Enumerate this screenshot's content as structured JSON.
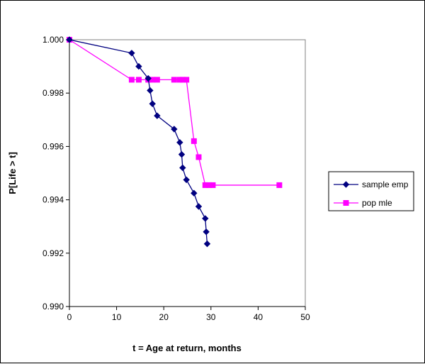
{
  "chart_data": {
    "type": "line",
    "title": "",
    "xlabel": "t = Age at return, months",
    "ylabel": "P[Life > t]",
    "xlim": [
      0,
      50
    ],
    "ylim": [
      0.99,
      1.0
    ],
    "xticks": [
      "0",
      "10",
      "20",
      "30",
      "40",
      "50"
    ],
    "yticks": [
      "0.990",
      "0.992",
      "0.994",
      "0.996",
      "0.998",
      "1.000"
    ],
    "grid": false,
    "legend_position": "right",
    "series": [
      {
        "name": "sample emp",
        "color": "#000080",
        "marker": "diamond",
        "points": [
          [
            0,
            1.0
          ],
          [
            13.2,
            0.9995
          ],
          [
            14.7,
            0.999
          ],
          [
            16.7,
            0.99855
          ],
          [
            17.1,
            0.9981
          ],
          [
            17.6,
            0.9976
          ],
          [
            18.6,
            0.99715
          ],
          [
            22.2,
            0.99665
          ],
          [
            23.4,
            0.99615
          ],
          [
            23.8,
            0.9957
          ],
          [
            24.0,
            0.9952
          ],
          [
            24.8,
            0.99475
          ],
          [
            26.4,
            0.99425
          ],
          [
            27.4,
            0.99375
          ],
          [
            28.8,
            0.9933
          ],
          [
            29.0,
            0.9928
          ],
          [
            29.2,
            0.99235
          ]
        ]
      },
      {
        "name": "pop mle",
        "color": "#ff00ff",
        "marker": "square",
        "points": [
          [
            0,
            1.0
          ],
          [
            13.2,
            0.9985
          ],
          [
            14.7,
            0.9985
          ],
          [
            16.7,
            0.9985
          ],
          [
            17.6,
            0.9985
          ],
          [
            18.6,
            0.9985
          ],
          [
            22.2,
            0.9985
          ],
          [
            23.4,
            0.9985
          ],
          [
            24.0,
            0.9985
          ],
          [
            24.8,
            0.9985
          ],
          [
            26.4,
            0.9962
          ],
          [
            27.4,
            0.9956
          ],
          [
            28.8,
            0.99455
          ],
          [
            29.6,
            0.99455
          ],
          [
            30.4,
            0.99455
          ],
          [
            44.5,
            0.99455
          ]
        ]
      }
    ]
  }
}
